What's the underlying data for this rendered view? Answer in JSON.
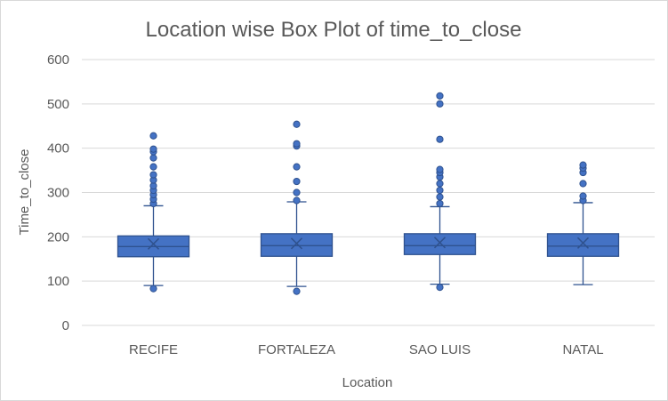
{
  "chart_data": {
    "type": "box",
    "title": "Location wise Box Plot of time_to_close",
    "xlabel": "Location",
    "ylabel": "Time_to_close",
    "ylim": [
      0,
      600
    ],
    "yticks": [
      0,
      100,
      200,
      300,
      400,
      500,
      600
    ],
    "grid": true,
    "legend": "none",
    "color": "#4472C4",
    "edge_color": "#2F528F",
    "categories": [
      "RECIFE",
      "FORTALEZA",
      "SAO LUIS",
      "NATAL"
    ],
    "boxes": [
      {
        "whisker_low": 90,
        "q1": 155,
        "median": 178,
        "mean": 184,
        "q3": 202,
        "whisker_high": 270,
        "outliers": [
          83,
          275,
          285,
          295,
          305,
          315,
          328,
          340,
          358,
          378,
          392,
          398,
          428
        ]
      },
      {
        "whisker_low": 88,
        "q1": 156,
        "median": 180,
        "mean": 185,
        "q3": 207,
        "whisker_high": 279,
        "outliers": [
          77,
          282,
          300,
          325,
          358,
          405,
          410,
          454
        ]
      },
      {
        "whisker_low": 93,
        "q1": 160,
        "median": 180,
        "mean": 187,
        "q3": 207,
        "whisker_high": 268,
        "outliers": [
          86,
          275,
          290,
          305,
          320,
          335,
          345,
          352,
          420,
          500,
          518
        ]
      },
      {
        "whisker_low": 92,
        "q1": 156,
        "median": 179,
        "mean": 186,
        "q3": 207,
        "whisker_high": 277,
        "outliers": [
          282,
          292,
          320,
          345,
          355,
          362
        ]
      }
    ]
  }
}
